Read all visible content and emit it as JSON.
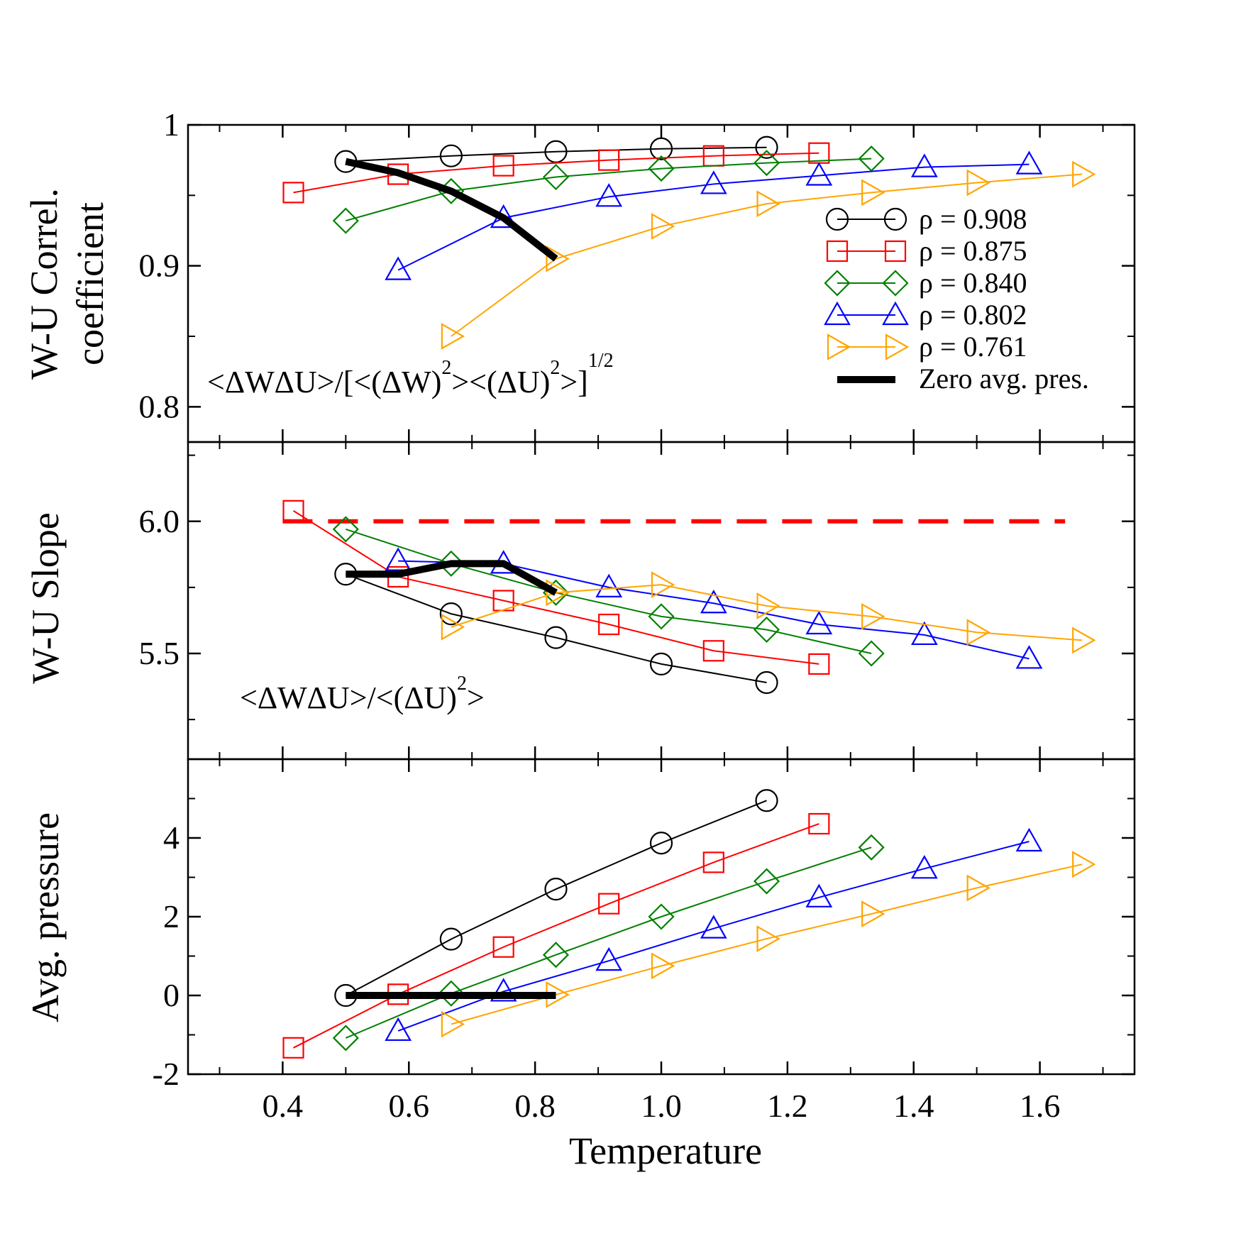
{
  "chart_data": {
    "type": "line",
    "xlabel": "Temperature",
    "x_ticks": [
      "0.4",
      "0.6",
      "0.8",
      "1.0",
      "1.2",
      "1.4",
      "1.6"
    ],
    "x_tick_values": [
      0.4,
      0.6,
      0.8,
      1.0,
      1.2,
      1.4,
      1.6
    ],
    "xlim": [
      0.25,
      1.75
    ],
    "series_styles": [
      {
        "name": "ρ = 0.908",
        "color": "#000000",
        "marker": "circle"
      },
      {
        "name": "ρ = 0.875",
        "color": "#ff0000",
        "marker": "square"
      },
      {
        "name": "ρ = 0.840",
        "color": "#008000",
        "marker": "diamond"
      },
      {
        "name": "ρ = 0.802",
        "color": "#0000ff",
        "marker": "triangle-up"
      },
      {
        "name": "ρ = 0.761",
        "color": "#ffa500",
        "marker": "triangle-right"
      }
    ],
    "zero_line": {
      "name": "Zero avg. pres.",
      "color": "#000000"
    },
    "panels": [
      {
        "id": "correlation",
        "ylabel_lines": [
          "W-U Correl.",
          "coefficient"
        ],
        "ylim": [
          0.775,
          1.0
        ],
        "y_ticks": [
          "1",
          "0.9",
          "0.8"
        ],
        "y_tick_values": [
          1.0,
          0.9,
          0.8
        ],
        "annotation": {
          "main": "<ΔWΔU>/[<(ΔW)",
          "sup1": "2",
          "mid": "><(ΔU)",
          "sup2": "2",
          "end": ">]",
          "sup3": "1/2"
        },
        "series": [
          {
            "x": [
              0.5,
              0.667,
              0.833,
              1.0,
              1.167
            ],
            "y": [
              0.974,
              0.978,
              0.981,
              0.983,
              0.984
            ]
          },
          {
            "x": [
              0.417,
              0.583,
              0.75,
              0.917,
              1.083,
              1.25
            ],
            "y": [
              0.952,
              0.965,
              0.971,
              0.975,
              0.978,
              0.98
            ]
          },
          {
            "x": [
              0.5,
              0.667,
              0.833,
              1.0,
              1.167,
              1.333
            ],
            "y": [
              0.932,
              0.953,
              0.963,
              0.969,
              0.973,
              0.976
            ]
          },
          {
            "x": [
              0.583,
              0.75,
              0.917,
              1.083,
              1.25,
              1.417,
              1.583
            ],
            "y": [
              0.897,
              0.934,
              0.949,
              0.958,
              0.964,
              0.97,
              0.972
            ]
          },
          {
            "x": [
              0.667,
              0.833,
              1.0,
              1.167,
              1.333,
              1.5,
              1.667
            ],
            "y": [
              0.85,
              0.905,
              0.928,
              0.944,
              0.952,
              0.959,
              0.965
            ]
          }
        ],
        "zero_line": {
          "x": [
            0.5,
            0.583,
            0.667,
            0.75,
            0.833
          ],
          "y": [
            0.974,
            0.966,
            0.953,
            0.934,
            0.905
          ]
        }
      },
      {
        "id": "slope",
        "ylabel_lines": [
          "W-U Slope"
        ],
        "ylim": [
          5.1,
          6.3
        ],
        "y_ticks": [
          "6.0",
          "5.5"
        ],
        "y_tick_values": [
          6.0,
          5.5
        ],
        "annotation": {
          "main": "<ΔWΔU>/<(ΔU)",
          "sup1": "2",
          "end": ">"
        },
        "reference_line": {
          "y": 6.0,
          "x": [
            0.4,
            1.64
          ],
          "color": "#ff0000",
          "style": "dashed"
        },
        "series": [
          {
            "x": [
              0.5,
              0.667,
              0.833,
              1.0,
              1.167
            ],
            "y": [
              5.8,
              5.65,
              5.56,
              5.46,
              5.39
            ]
          },
          {
            "x": [
              0.417,
              0.583,
              0.75,
              0.917,
              1.083,
              1.25
            ],
            "y": [
              6.04,
              5.79,
              5.7,
              5.61,
              5.51,
              5.46
            ]
          },
          {
            "x": [
              0.5,
              0.667,
              0.833,
              1.0,
              1.167,
              1.333
            ],
            "y": [
              5.97,
              5.84,
              5.73,
              5.64,
              5.59,
              5.5
            ]
          },
          {
            "x": [
              0.583,
              0.75,
              0.917,
              1.083,
              1.25,
              1.417,
              1.583
            ],
            "y": [
              5.85,
              5.84,
              5.75,
              5.69,
              5.61,
              5.57,
              5.48
            ]
          },
          {
            "x": [
              0.667,
              0.833,
              1.0,
              1.167,
              1.333,
              1.5,
              1.667
            ],
            "y": [
              5.6,
              5.73,
              5.76,
              5.68,
              5.64,
              5.58,
              5.55
            ]
          }
        ],
        "zero_line": {
          "x": [
            0.5,
            0.583,
            0.667,
            0.75,
            0.833
          ],
          "y": [
            5.8,
            5.8,
            5.84,
            5.84,
            5.73
          ]
        }
      },
      {
        "id": "pressure",
        "ylabel_lines": [
          "Avg. pressure"
        ],
        "ylim": [
          -2,
          6
        ],
        "y_ticks": [
          "4",
          "2",
          "0",
          "-2"
        ],
        "y_tick_values": [
          4,
          2,
          0,
          -2
        ],
        "series": [
          {
            "x": [
              0.5,
              0.667,
              0.833,
              1.0,
              1.167
            ],
            "y": [
              0.0,
              1.43,
              2.7,
              3.87,
              4.95
            ]
          },
          {
            "x": [
              0.417,
              0.583,
              0.75,
              0.917,
              1.083,
              1.25
            ],
            "y": [
              -1.33,
              0.03,
              1.23,
              2.33,
              3.38,
              4.36
            ]
          },
          {
            "x": [
              0.5,
              0.667,
              0.833,
              1.0,
              1.167,
              1.333
            ],
            "y": [
              -1.08,
              0.05,
              1.03,
              2.0,
              2.9,
              3.76
            ]
          },
          {
            "x": [
              0.583,
              0.75,
              0.917,
              1.083,
              1.25,
              1.417,
              1.583
            ],
            "y": [
              -0.9,
              0.1,
              0.88,
              1.7,
              2.49,
              3.22,
              3.91
            ]
          },
          {
            "x": [
              0.667,
              0.833,
              1.0,
              1.167,
              1.333,
              1.5,
              1.667
            ],
            "y": [
              -0.73,
              0.02,
              0.75,
              1.44,
              2.07,
              2.73,
              3.33
            ]
          }
        ],
        "zero_line": {
          "x": [
            0.5,
            0.833
          ],
          "y": [
            0.0,
            0.0
          ]
        }
      }
    ]
  }
}
